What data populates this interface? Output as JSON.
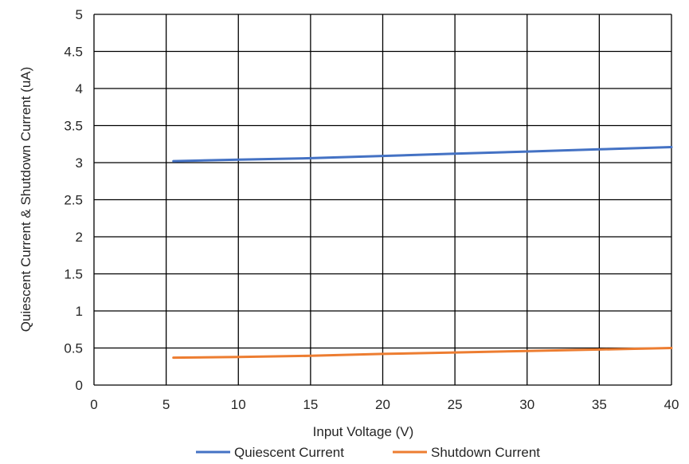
{
  "chart_data": {
    "type": "line",
    "title": "",
    "xlabel": "Input Voltage (V)",
    "ylabel": "Quiescent Current & Shutdown Current (uA)",
    "xlim": [
      0,
      40
    ],
    "ylim": [
      0,
      5
    ],
    "xticks": [
      "0",
      "5",
      "10",
      "15",
      "20",
      "25",
      "30",
      "35",
      "40"
    ],
    "yticks": [
      "0",
      "0.5",
      "1",
      "1.5",
      "2",
      "2.5",
      "3",
      "3.5",
      "4",
      "4.5",
      "5"
    ],
    "grid": true,
    "legend_position": "bottom",
    "series": [
      {
        "name": "Quiescent Current",
        "color": "#4472C4",
        "x": [
          5.5,
          10,
          15,
          20,
          25,
          30,
          35,
          40
        ],
        "y": [
          3.02,
          3.04,
          3.06,
          3.09,
          3.12,
          3.15,
          3.18,
          3.21
        ]
      },
      {
        "name": "Shutdown Current",
        "color": "#ED7D31",
        "x": [
          5.5,
          10,
          15,
          20,
          25,
          30,
          35,
          40
        ],
        "y": [
          0.37,
          0.38,
          0.395,
          0.42,
          0.44,
          0.46,
          0.48,
          0.5
        ]
      }
    ]
  }
}
